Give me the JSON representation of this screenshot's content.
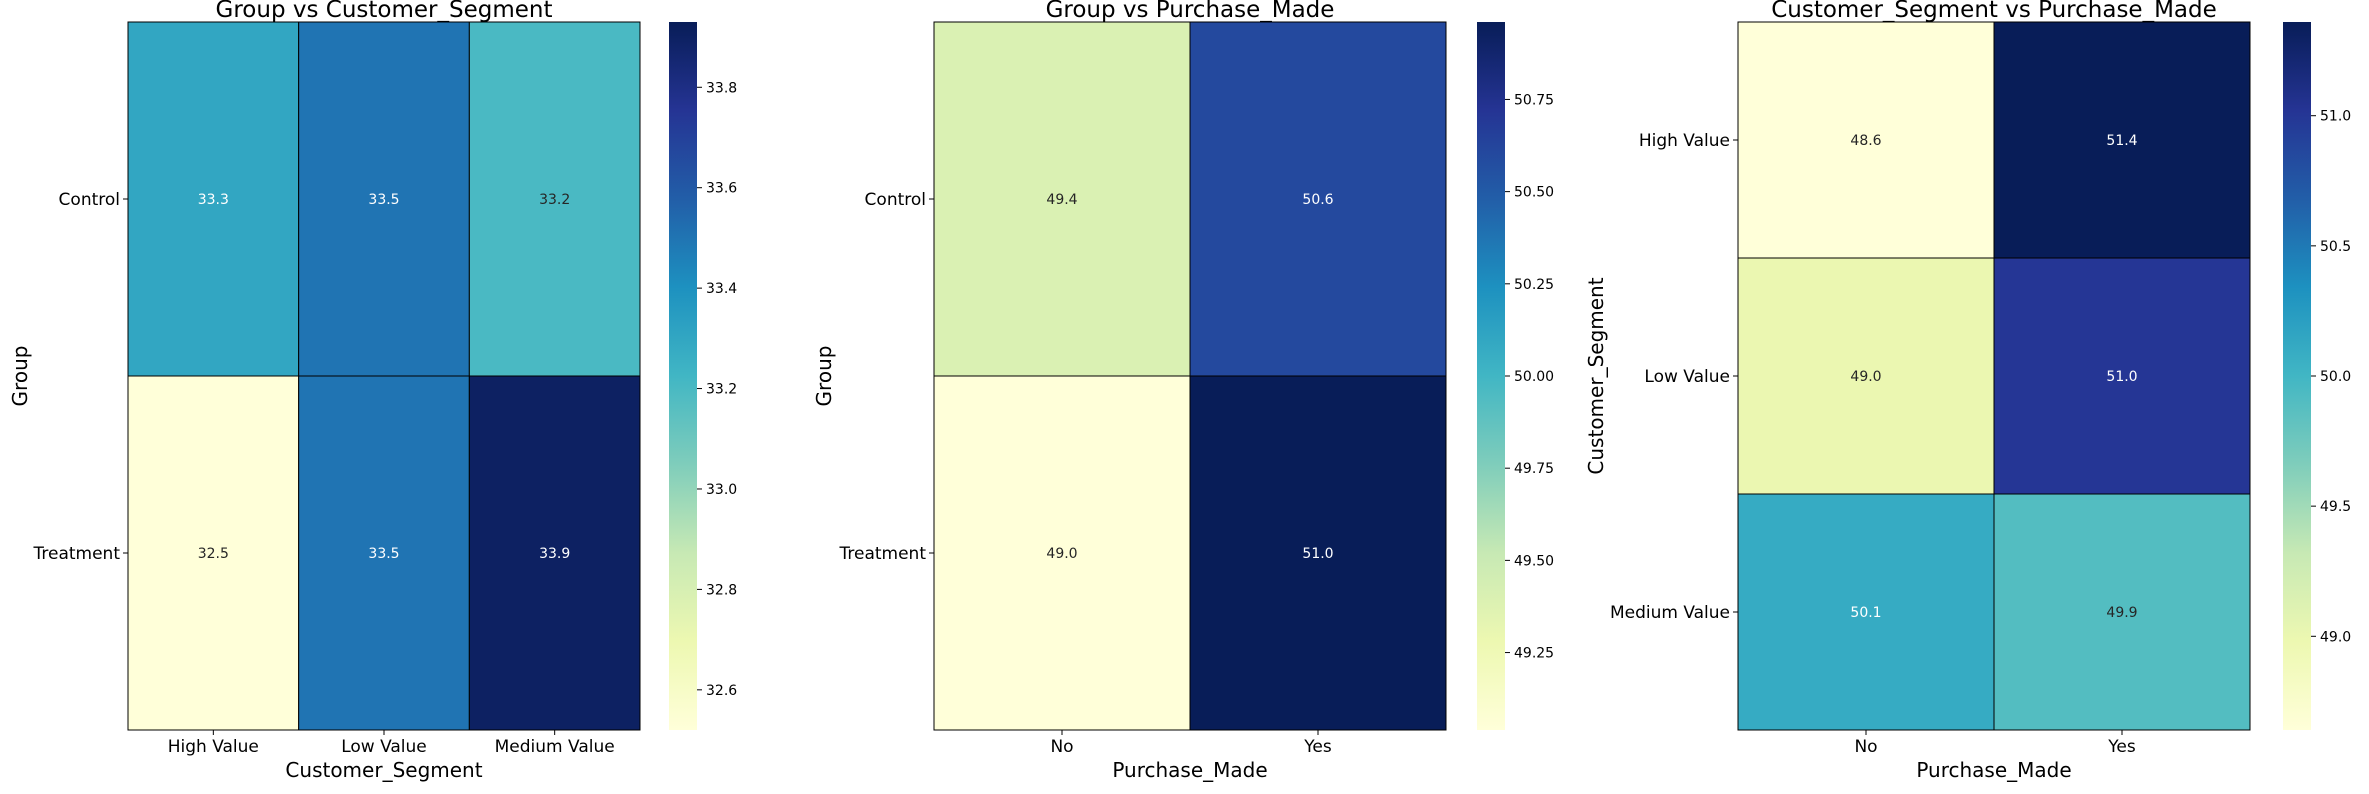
{
  "chart_data": [
    {
      "type": "heatmap",
      "title": "Group vs Customer_Segment",
      "xlabel": "Customer_Segment",
      "ylabel": "Group",
      "x_categories": [
        "High Value",
        "Low Value",
        "Medium Value"
      ],
      "y_categories": [
        "Control",
        "Treatment"
      ],
      "values": [
        [
          33.3,
          33.5,
          33.2
        ],
        [
          32.5,
          33.5,
          33.9
        ]
      ],
      "value_labels": [
        [
          "33.3",
          "33.5",
          "33.2"
        ],
        [
          "32.5",
          "33.5",
          "33.9"
        ]
      ],
      "colormap": "YlGnBu",
      "color_range": [
        32.52,
        33.93
      ],
      "colorbar_ticks": [
        "32.6",
        "32.8",
        "33.0",
        "33.2",
        "33.4",
        "33.6",
        "33.8"
      ],
      "colorbar_tick_values": [
        32.6,
        32.8,
        33.0,
        33.2,
        33.4,
        33.6,
        33.8
      ]
    },
    {
      "type": "heatmap",
      "title": "Group vs Purchase_Made",
      "xlabel": "Purchase_Made",
      "ylabel": "Group",
      "x_categories": [
        "No",
        "Yes"
      ],
      "y_categories": [
        "Control",
        "Treatment"
      ],
      "values": [
        [
          49.4,
          50.6
        ],
        [
          49.0,
          51.0
        ]
      ],
      "value_labels": [
        [
          "49.4",
          "50.6"
        ],
        [
          "49.0",
          "51.0"
        ]
      ],
      "colormap": "YlGnBu",
      "color_range": [
        49.04,
        50.96
      ],
      "colorbar_ticks": [
        "49.25",
        "49.50",
        "49.75",
        "50.00",
        "50.25",
        "50.50",
        "50.75"
      ],
      "colorbar_tick_values": [
        49.25,
        49.5,
        49.75,
        50.0,
        50.25,
        50.5,
        50.75
      ]
    },
    {
      "type": "heatmap",
      "title": "Customer_Segment vs Purchase_Made",
      "xlabel": "Purchase_Made",
      "ylabel": "Customer_Segment",
      "x_categories": [
        "No",
        "Yes"
      ],
      "y_categories": [
        "High Value",
        "Low Value",
        "Medium Value"
      ],
      "values": [
        [
          48.6,
          51.4
        ],
        [
          49.0,
          51.0
        ],
        [
          50.1,
          49.9
        ]
      ],
      "value_labels": [
        [
          "48.6",
          "51.4"
        ],
        [
          "49.0",
          "51.0"
        ],
        [
          "50.1",
          "49.9"
        ]
      ],
      "colormap": "YlGnBu",
      "color_range": [
        48.64,
        51.36
      ],
      "colorbar_ticks": [
        "49.0",
        "49.5",
        "50.0",
        "50.5",
        "51.0"
      ],
      "colorbar_tick_values": [
        49.0,
        49.5,
        50.0,
        50.5,
        51.0
      ]
    }
  ]
}
